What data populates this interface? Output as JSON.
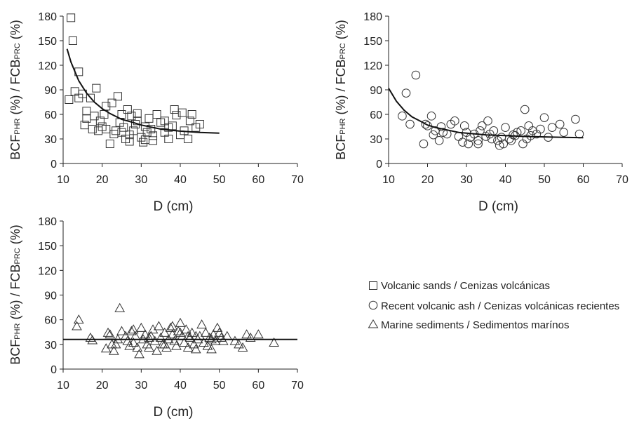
{
  "chart_data": [
    {
      "type": "scatter",
      "panel": "top-left",
      "xlabel": "D (cm)",
      "ylabel": {
        "p1": "BCF",
        "s1": "PHR",
        "p2": " (%) / FCB",
        "s2": "PRC",
        "p3": " (%)"
      },
      "xlim": [
        10,
        70
      ],
      "ylim": [
        0,
        180
      ],
      "xticks": [
        10,
        20,
        30,
        40,
        50,
        60,
        70
      ],
      "yticks": [
        0,
        30,
        60,
        90,
        120,
        150,
        180
      ],
      "series": [
        {
          "name": "Volcanic sands / Cenizas volcánicas",
          "marker": "square",
          "points": [
            [
              12,
              178
            ],
            [
              12.5,
              150
            ],
            [
              13,
              88
            ],
            [
              14,
              112
            ],
            [
              11.5,
              78
            ],
            [
              14,
              80
            ],
            [
              15,
              85
            ],
            [
              16,
              55
            ],
            [
              15.5,
              47
            ],
            [
              17,
              80
            ],
            [
              17.5,
              42
            ],
            [
              18,
              58
            ],
            [
              18.5,
              92
            ],
            [
              16,
              64
            ],
            [
              19,
              40
            ],
            [
              19.5,
              52
            ],
            [
              20,
              45
            ],
            [
              20.5,
              60
            ],
            [
              21,
              70
            ],
            [
              22,
              24
            ],
            [
              22.5,
              74
            ],
            [
              23,
              36
            ],
            [
              24,
              82
            ],
            [
              24.5,
              50
            ],
            [
              25,
              60
            ],
            [
              25.5,
              44
            ],
            [
              26,
              30
            ],
            [
              26.5,
              66
            ],
            [
              27,
              27
            ],
            [
              27.5,
              58
            ],
            [
              28,
              40
            ],
            [
              28.5,
              48
            ],
            [
              29,
              61
            ],
            [
              30,
              32
            ],
            [
              30.5,
              26
            ],
            [
              31,
              45
            ],
            [
              31.5,
              38
            ],
            [
              32,
              55
            ],
            [
              32.5,
              42
            ],
            [
              33,
              34
            ],
            [
              34,
              60
            ],
            [
              35,
              50
            ],
            [
              36,
              38
            ],
            [
              37,
              30
            ],
            [
              38,
              46
            ],
            [
              38.5,
              66
            ],
            [
              39,
              59
            ],
            [
              40,
              35
            ],
            [
              40.5,
              62
            ],
            [
              41,
              40
            ],
            [
              42,
              30
            ],
            [
              42.5,
              52
            ],
            [
              43,
              60
            ],
            [
              44,
              44
            ],
            [
              45,
              48
            ],
            [
              23.5,
              40
            ],
            [
              27,
              35
            ],
            [
              29,
              52
            ],
            [
              33,
              28
            ],
            [
              36,
              52
            ],
            [
              21,
              42
            ],
            [
              25,
              38
            ],
            [
              31,
              29
            ],
            [
              37,
              44
            ]
          ]
        },
        {
          "name": "fit",
          "type": "line",
          "points": [
            [
              11,
              140
            ],
            [
              12,
              124
            ],
            [
              14,
              101
            ],
            [
              16,
              86
            ],
            [
              18,
              75
            ],
            [
              20,
              67
            ],
            [
              22,
              61
            ],
            [
              25,
              54
            ],
            [
              28,
              50
            ],
            [
              30,
              47
            ],
            [
              35,
              42
            ],
            [
              40,
              39.5
            ],
            [
              45,
              38
            ],
            [
              50,
              37
            ]
          ]
        }
      ]
    },
    {
      "type": "scatter",
      "panel": "top-right",
      "xlabel": "D (cm)",
      "ylabel": {
        "p1": "BCF",
        "s1": "PHR",
        "p2": " (%) / FCB",
        "s2": "PRC",
        "p3": " (%)"
      },
      "xlim": [
        10,
        70
      ],
      "ylim": [
        0,
        180
      ],
      "xticks": [
        10,
        20,
        30,
        40,
        50,
        60,
        70
      ],
      "yticks": [
        0,
        30,
        60,
        90,
        120,
        150,
        180
      ],
      "series": [
        {
          "name": "Recent volcanic ash / Cenizas volcánicas recientes",
          "marker": "circle",
          "points": [
            [
              13.5,
              58
            ],
            [
              14.5,
              86
            ],
            [
              15.5,
              48
            ],
            [
              17,
              108
            ],
            [
              19,
              24
            ],
            [
              19.5,
              48
            ],
            [
              20,
              46
            ],
            [
              21,
              58
            ],
            [
              21.5,
              35
            ],
            [
              22,
              40
            ],
            [
              23,
              28
            ],
            [
              24,
              38
            ],
            [
              25,
              36
            ],
            [
              26,
              48
            ],
            [
              27,
              52
            ],
            [
              28,
              33
            ],
            [
              29,
              26
            ],
            [
              29.5,
              46
            ],
            [
              30,
              38
            ],
            [
              31,
              32
            ],
            [
              32,
              36
            ],
            [
              33,
              28
            ],
            [
              33.5,
              40
            ],
            [
              34,
              46
            ],
            [
              35,
              33
            ],
            [
              35.5,
              52
            ],
            [
              36,
              36
            ],
            [
              37,
              40
            ],
            [
              38,
              28
            ],
            [
              39,
              32
            ],
            [
              39.5,
              24
            ],
            [
              40,
              44
            ],
            [
              41,
              30
            ],
            [
              42,
              35
            ],
            [
              43,
              38
            ],
            [
              44,
              40
            ],
            [
              45,
              66
            ],
            [
              45.5,
              30
            ],
            [
              46,
              46
            ],
            [
              47,
              40
            ],
            [
              48,
              36
            ],
            [
              49,
              42
            ],
            [
              50,
              56
            ],
            [
              51,
              32
            ],
            [
              52,
              44
            ],
            [
              54,
              48
            ],
            [
              55,
              38
            ],
            [
              58,
              54
            ],
            [
              59,
              36
            ],
            [
              23.5,
              45
            ],
            [
              36.5,
              30
            ],
            [
              41.5,
              28
            ],
            [
              44.5,
              24
            ],
            [
              46.5,
              34
            ],
            [
              30.5,
              24
            ],
            [
              33,
              24
            ],
            [
              38.5,
              22
            ],
            [
              42.5,
              34
            ]
          ]
        },
        {
          "name": "fit",
          "type": "line",
          "points": [
            [
              10,
              92
            ],
            [
              12,
              76
            ],
            [
              14,
              65
            ],
            [
              16,
              57
            ],
            [
              18,
              52
            ],
            [
              20,
              47
            ],
            [
              22,
              44
            ],
            [
              25,
              41
            ],
            [
              28,
              38
            ],
            [
              30,
              37
            ],
            [
              35,
              35
            ],
            [
              40,
              34
            ],
            [
              45,
              33
            ],
            [
              50,
              32.5
            ],
            [
              55,
              32
            ],
            [
              60,
              31.5
            ]
          ]
        }
      ]
    },
    {
      "type": "scatter",
      "panel": "bottom-left",
      "xlabel": "D (cm)",
      "ylabel": {
        "p1": "BCF",
        "s1": "PHR",
        "p2": " (%) / FCB",
        "s2": "PRC",
        "p3": " (%)"
      },
      "xlim": [
        10,
        70
      ],
      "ylim": [
        0,
        180
      ],
      "xticks": [
        10,
        20,
        30,
        40,
        50,
        60,
        70
      ],
      "yticks": [
        0,
        30,
        60,
        90,
        120,
        150,
        180
      ],
      "series": [
        {
          "name": "Marine sediments / Sedimentos marínos",
          "marker": "triangle",
          "points": [
            [
              13.5,
              52
            ],
            [
              14,
              60
            ],
            [
              17,
              38
            ],
            [
              17.5,
              35
            ],
            [
              21,
              25
            ],
            [
              21.5,
              44
            ],
            [
              22,
              42
            ],
            [
              23,
              22
            ],
            [
              23.5,
              30
            ],
            [
              24,
              36
            ],
            [
              24.5,
              74
            ],
            [
              25,
              46
            ],
            [
              26,
              40
            ],
            [
              26.5,
              34
            ],
            [
              27,
              28
            ],
            [
              27.5,
              46
            ],
            [
              28,
              32
            ],
            [
              28.5,
              40
            ],
            [
              29,
              26
            ],
            [
              29.5,
              18
            ],
            [
              30,
              50
            ],
            [
              30.5,
              36
            ],
            [
              31,
              42
            ],
            [
              31.5,
              30
            ],
            [
              32,
              26
            ],
            [
              32.5,
              40
            ],
            [
              33,
              48
            ],
            [
              33.5,
              34
            ],
            [
              34,
              22
            ],
            [
              34.5,
              52
            ],
            [
              35,
              38
            ],
            [
              35.5,
              30
            ],
            [
              36,
              44
            ],
            [
              36.5,
              26
            ],
            [
              37,
              36
            ],
            [
              37.5,
              50
            ],
            [
              38,
              42
            ],
            [
              38.5,
              34
            ],
            [
              39,
              28
            ],
            [
              39.5,
              46
            ],
            [
              40,
              56
            ],
            [
              40.5,
              40
            ],
            [
              41,
              32
            ],
            [
              41.5,
              48
            ],
            [
              42,
              26
            ],
            [
              42.5,
              38
            ],
            [
              43,
              44
            ],
            [
              43.5,
              30
            ],
            [
              44,
              24
            ],
            [
              44.5,
              36
            ],
            [
              45,
              40
            ],
            [
              45.5,
              54
            ],
            [
              46,
              32
            ],
            [
              46.5,
              44
            ],
            [
              47,
              28
            ],
            [
              47.5,
              38
            ],
            [
              48,
              24
            ],
            [
              48.5,
              42
            ],
            [
              49,
              34
            ],
            [
              49.5,
              50
            ],
            [
              50,
              44
            ],
            [
              50.5,
              38
            ],
            [
              51,
              34
            ],
            [
              52,
              40
            ],
            [
              54,
              34
            ],
            [
              55,
              30
            ],
            [
              56,
              26
            ],
            [
              57,
              42
            ],
            [
              58,
              38
            ],
            [
              60,
              42
            ],
            [
              64,
              32
            ],
            [
              22.5,
              30
            ],
            [
              28,
              48
            ],
            [
              32,
              38
            ],
            [
              36,
              30
            ],
            [
              40,
              44
            ],
            [
              44,
              40
            ],
            [
              48,
              36
            ],
            [
              38,
              52
            ],
            [
              42,
              40
            ]
          ]
        },
        {
          "name": "fit",
          "type": "line",
          "points": [
            [
              10,
              36
            ],
            [
              70,
              36
            ]
          ]
        }
      ]
    }
  ],
  "legend": [
    {
      "marker": "square",
      "label": "Volcanic sands / Cenizas volcánicas"
    },
    {
      "marker": "circle",
      "label": "Recent volcanic ash / Cenizas volcánicas recientes"
    },
    {
      "marker": "triangle",
      "label": "Marine sediments / Sedimentos marínos"
    }
  ]
}
